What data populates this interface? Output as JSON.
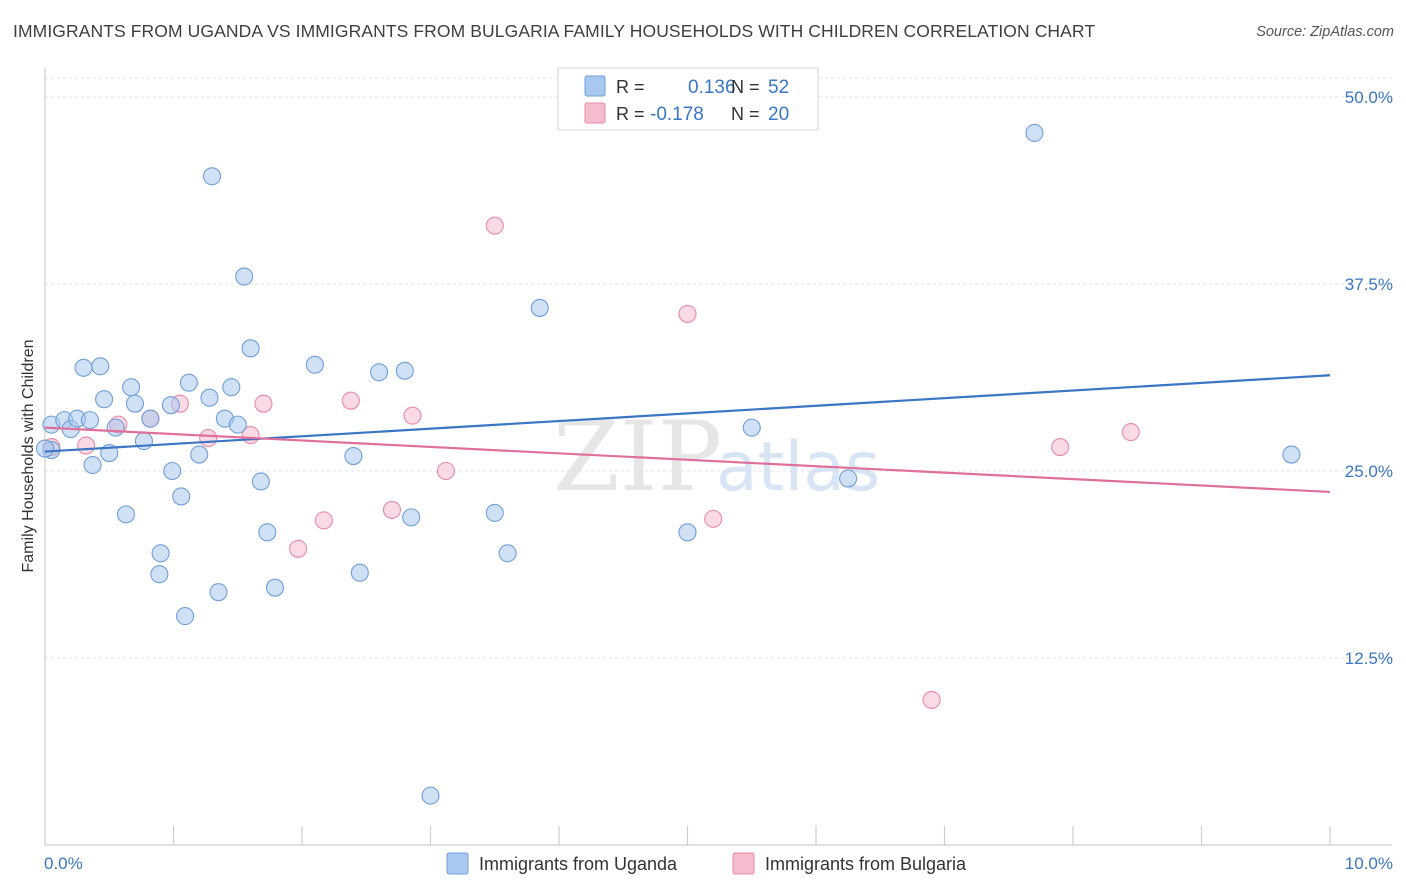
{
  "header": {
    "title": "IMMIGRANTS FROM UGANDA VS IMMIGRANTS FROM BULGARIA FAMILY HOUSEHOLDS WITH CHILDREN CORRELATION CHART",
    "source": "Source: ZipAtlas.com"
  },
  "watermark": {
    "zip": "ZIP",
    "atlas": "atlas"
  },
  "chart_data": {
    "type": "scatter",
    "ylabel": "Family Households with Children",
    "xlim": [
      0,
      10
    ],
    "ylim": [
      0,
      52
    ],
    "x_tick_labels": [
      "0.0%",
      "10.0%"
    ],
    "y_ticks": [
      12.5,
      25.0,
      37.5,
      50.0
    ],
    "y_tick_labels": [
      "12.5%",
      "25.0%",
      "37.5%",
      "50.0%"
    ],
    "grid": "horizontal dashed",
    "legend_placement": "top-center",
    "legend": [
      {
        "r_label": "R =",
        "r_value": "0.136",
        "n_label": "N =",
        "n_value": "52"
      },
      {
        "r_label": "R =",
        "r_value": "-0.178",
        "n_label": "N =",
        "n_value": "20"
      }
    ],
    "series": [
      {
        "name": "Immigrants from Uganda",
        "color": "#a9c8ef",
        "stroke": "#6f9fd8",
        "line_color": "#3a76c4",
        "trend": {
          "x": [
            0,
            10
          ],
          "y": [
            26.3,
            31.4
          ]
        },
        "points": [
          [
            0.05,
            28.1
          ],
          [
            0.15,
            28.4
          ],
          [
            0.2,
            27.8
          ],
          [
            0.25,
            28.5
          ],
          [
            0.3,
            31.9
          ],
          [
            0.35,
            28.4
          ],
          [
            0.37,
            25.4
          ],
          [
            0.43,
            32.0
          ],
          [
            0.46,
            29.8
          ],
          [
            0.5,
            26.2
          ],
          [
            0.55,
            27.9
          ],
          [
            0.63,
            22.1
          ],
          [
            0.67,
            30.6
          ],
          [
            0.7,
            29.5
          ],
          [
            0.77,
            27.0
          ],
          [
            0.82,
            28.5
          ],
          [
            0.89,
            18.1
          ],
          [
            0.9,
            19.5
          ],
          [
            0.98,
            29.4
          ],
          [
            0.99,
            25.0
          ],
          [
            1.06,
            23.3
          ],
          [
            1.09,
            15.3
          ],
          [
            1.12,
            30.9
          ],
          [
            1.2,
            26.1
          ],
          [
            1.28,
            29.9
          ],
          [
            1.3,
            44.7
          ],
          [
            1.35,
            16.9
          ],
          [
            1.4,
            28.5
          ],
          [
            1.45,
            30.6
          ],
          [
            1.5,
            28.1
          ],
          [
            1.55,
            38.0
          ],
          [
            1.6,
            33.2
          ],
          [
            1.68,
            24.3
          ],
          [
            1.73,
            20.9
          ],
          [
            1.79,
            17.2
          ],
          [
            2.1,
            32.1
          ],
          [
            2.4,
            26.0
          ],
          [
            2.45,
            18.2
          ],
          [
            2.6,
            31.6
          ],
          [
            2.8,
            31.7
          ],
          [
            2.85,
            21.9
          ],
          [
            3.0,
            3.3
          ],
          [
            3.5,
            22.2
          ],
          [
            3.6,
            19.5
          ],
          [
            3.85,
            35.9
          ],
          [
            5.0,
            20.9
          ],
          [
            5.5,
            27.9
          ],
          [
            6.25,
            24.5
          ],
          [
            7.7,
            47.6
          ],
          [
            9.7,
            26.1
          ],
          [
            0.05,
            26.4
          ],
          [
            0.0,
            26.5
          ]
        ]
      },
      {
        "name": "Immigrants from Bulgaria",
        "color": "#f5bccd",
        "stroke": "#e88aa8",
        "line_color": "#e0709a",
        "trend": {
          "x": [
            0,
            10
          ],
          "y": [
            27.9,
            23.6
          ]
        },
        "points": [
          [
            0.05,
            26.6
          ],
          [
            0.32,
            26.7
          ],
          [
            0.57,
            28.1
          ],
          [
            0.82,
            28.5
          ],
          [
            1.05,
            29.5
          ],
          [
            1.27,
            27.2
          ],
          [
            1.6,
            27.4
          ],
          [
            1.7,
            29.5
          ],
          [
            1.97,
            19.8
          ],
          [
            2.17,
            21.7
          ],
          [
            2.38,
            29.7
          ],
          [
            2.7,
            22.4
          ],
          [
            2.86,
            28.7
          ],
          [
            3.12,
            25.0
          ],
          [
            3.5,
            41.4
          ],
          [
            5.0,
            35.5
          ],
          [
            5.2,
            21.8
          ],
          [
            6.9,
            9.7
          ],
          [
            7.9,
            26.6
          ],
          [
            8.45,
            27.6
          ]
        ]
      }
    ]
  }
}
